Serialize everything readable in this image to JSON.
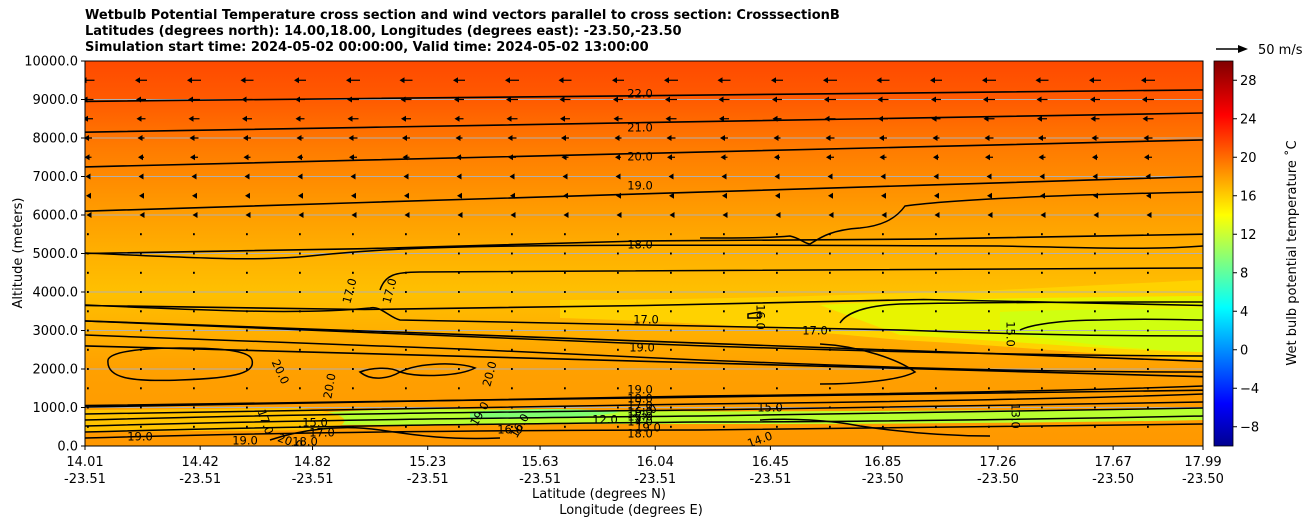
{
  "title_lines": [
    "Wetbulb Potential Temperature cross section and wind vectors parallel to cross section: CrosssectionB",
    "Latitudes (degrees north): 14.00,18.00, Longitudes (degrees east): -23.50,-23.50",
    "Simulation start time: 2024-05-02 00:00:00, Valid time: 2024-05-02 13:00:00"
  ],
  "quiver_key_label": "50 m/s",
  "chart_data": {
    "type": "heatmap",
    "subtype": "cross-section filled contour with contour lines and wind vectors",
    "ylabel": "Altitude (meters)",
    "xlabel_lines": [
      "Latitude (degrees N)",
      "Longitude (degrees E)"
    ],
    "ylim": [
      0,
      10000
    ],
    "y_ticks": [
      "0.0",
      "1000.0",
      "2000.0",
      "3000.0",
      "4000.0",
      "5000.0",
      "6000.0",
      "7000.0",
      "8000.0",
      "9000.0",
      "10000.0"
    ],
    "x_ticks": [
      {
        "lat": "14.01",
        "lon": "-23.51"
      },
      {
        "lat": "14.42",
        "lon": "-23.51"
      },
      {
        "lat": "14.82",
        "lon": "-23.51"
      },
      {
        "lat": "15.23",
        "lon": "-23.51"
      },
      {
        "lat": "15.63",
        "lon": "-23.51"
      },
      {
        "lat": "16.04",
        "lon": "-23.51"
      },
      {
        "lat": "16.45",
        "lon": "-23.51"
      },
      {
        "lat": "16.85",
        "lon": "-23.50"
      },
      {
        "lat": "17.26",
        "lon": "-23.50"
      },
      {
        "lat": "17.67",
        "lon": "-23.50"
      },
      {
        "lat": "17.99",
        "lon": "-23.50"
      }
    ],
    "x_range_lat": [
      14.01,
      17.99
    ],
    "grid": "horizontal lines at y ticks",
    "colorbar": {
      "label": "Wet bulb potential temperature $^\\circ$C",
      "range": [
        -10,
        30
      ],
      "ticks": [
        "−8",
        "−4",
        "0",
        "4",
        "8",
        "12",
        "16",
        "20",
        "24",
        "28"
      ],
      "colormap": "jet"
    },
    "contour_lines": [
      {
        "value": "22.0",
        "alt_start": 8950,
        "alt_end": 9250
      },
      {
        "value": "21.0",
        "alt_start": 8150,
        "alt_end": 8650
      },
      {
        "value": "20.0",
        "alt_start": 7250,
        "alt_end": 7950
      },
      {
        "value": "19.0",
        "alt_start": 6100,
        "alt_end": 7000
      },
      {
        "value": "18.0",
        "alt_start": 5000,
        "alt_end": 5500
      },
      {
        "value": "17.0",
        "alt_start": 3650,
        "alt_end": 3650
      },
      {
        "value": "19.0",
        "alt_start": 3250,
        "alt_end": 2200
      },
      {
        "value": "20.0",
        "alt_start": 2600,
        "alt_end": 1800
      },
      {
        "value": "19.0",
        "alt_start": 1050,
        "alt_end": 1450
      },
      {
        "value": "15.0",
        "alt_start": 3000,
        "alt_end": 2500
      }
    ],
    "contour_inline_labels": [
      "22.0",
      "21.0",
      "20.0",
      "19.0",
      "18.0",
      "17.0",
      "17.0",
      "17.0",
      "17.0",
      "16.0",
      "15.0",
      "19.0",
      "20.0",
      "20.0",
      "20.0",
      "19.0",
      "18.0",
      "17.0",
      "16.0",
      "15.0",
      "14.0",
      "13.0",
      "12.0",
      "15.0",
      "17.0",
      "18.0",
      "19.0",
      "20.0",
      "19.0",
      "18.0",
      "16.0",
      "19.0",
      "13.0",
      "15.0",
      "14.0",
      "17.0",
      "19.0",
      "16.0"
    ],
    "wind_note": "easterly winds (vectors pointing left), strong above 6500 m, weak below"
  }
}
